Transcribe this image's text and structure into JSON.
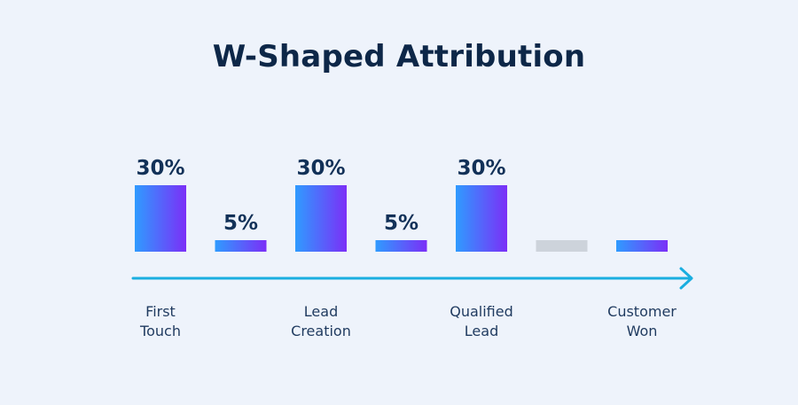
{
  "title": "W-Shaped Attribution",
  "colors": {
    "bar_gradient_start": "#2f9bff",
    "bar_gradient_end": "#7b2ff7",
    "bar_empty": "#cdd3db",
    "axis": "#1aaee0",
    "text_dark": "#0d2748",
    "background": "#eef3fb"
  },
  "chart_data": {
    "type": "bar",
    "title": "W-Shaped Attribution",
    "categories": [
      "First Touch",
      "",
      "Lead Creation",
      "",
      "Qualified Lead",
      "",
      "Customer Won"
    ],
    "values": [
      30,
      5,
      30,
      5,
      30,
      5,
      5
    ],
    "value_labels": [
      "30%",
      "5%",
      "30%",
      "5%",
      "30%",
      "",
      ""
    ],
    "bar_styles": [
      "gradient",
      "gradient",
      "gradient",
      "gradient",
      "gradient",
      "gray",
      "gradient"
    ],
    "stage_labels": [
      {
        "lines": [
          "First",
          "Touch"
        ],
        "bar_index": 0
      },
      {
        "lines": [
          "Lead",
          "Creation"
        ],
        "bar_index": 2
      },
      {
        "lines": [
          "Qualified",
          "Lead"
        ],
        "bar_index": 4
      },
      {
        "lines": [
          "Customer",
          "Won"
        ],
        "bar_index": 6
      }
    ],
    "ylim": [
      0,
      30
    ],
    "grid": false,
    "legend": "none",
    "axis_arrow": true
  }
}
